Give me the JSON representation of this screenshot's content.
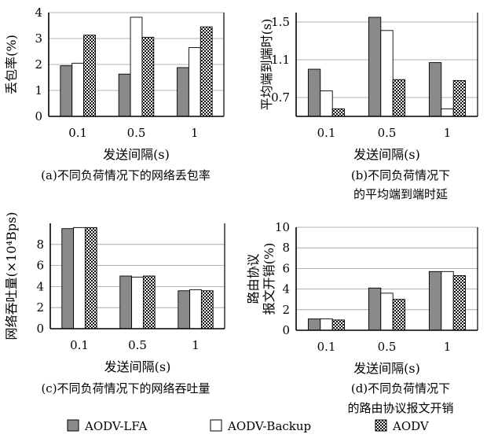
{
  "legend": [
    {
      "name": "AODV-LFA",
      "pattern": "solid"
    },
    {
      "name": "AODV-Backup",
      "pattern": "empty"
    },
    {
      "name": "AODV",
      "pattern": "crosshatch"
    }
  ],
  "colors": {
    "lfa_fill": "#8a8a8a",
    "backup_fill": "#ffffff",
    "aodv_fill": "#111111",
    "axis": "#000000",
    "grid": "#9a9a9a"
  },
  "chart_data": [
    {
      "id": "a",
      "type": "bar",
      "categories": [
        "0.1",
        "0.5",
        "1"
      ],
      "series": [
        {
          "name": "AODV-LFA",
          "values": [
            1.95,
            1.63,
            1.88
          ]
        },
        {
          "name": "AODV-Backup",
          "values": [
            2.05,
            3.82,
            2.65
          ]
        },
        {
          "name": "AODV",
          "values": [
            3.13,
            3.05,
            3.45
          ]
        }
      ],
      "ylim": [
        0,
        4
      ],
      "yticks": [
        "0",
        "1",
        "2",
        "3",
        "4"
      ],
      "ytick_values": [
        0,
        1,
        2,
        3,
        4
      ],
      "ylabel": "丢包率(%)",
      "xlabel": "发送间隔(s)",
      "caption": [
        "(a)不同负荷情况下的网络丢包率"
      ],
      "grid": true
    },
    {
      "id": "b",
      "type": "bar",
      "categories": [
        "0.1",
        "0.5",
        "1"
      ],
      "series": [
        {
          "name": "AODV-LFA",
          "values": [
            1.0,
            1.55,
            1.07
          ]
        },
        {
          "name": "AODV-Backup",
          "values": [
            0.77,
            1.41,
            0.58
          ]
        },
        {
          "name": "AODV",
          "values": [
            0.58,
            0.89,
            0.88
          ]
        }
      ],
      "ylim": [
        0.5,
        1.6
      ],
      "yticks": [
        "0.7",
        "1.1",
        "1.5"
      ],
      "ytick_values": [
        0.7,
        1.1,
        1.5
      ],
      "ylabel": "平均端到端时(s)",
      "xlabel": "发送间隔(s)",
      "caption": [
        "(b)不同负荷情况下",
        "的平均端到端时延"
      ],
      "grid": true
    },
    {
      "id": "c",
      "type": "bar",
      "categories": [
        "0.1",
        "0.5",
        "1"
      ],
      "series": [
        {
          "name": "AODV-LFA",
          "values": [
            9.5,
            5.0,
            3.6
          ]
        },
        {
          "name": "AODV-Backup",
          "values": [
            9.6,
            4.9,
            3.7
          ]
        },
        {
          "name": "AODV",
          "values": [
            9.6,
            5.0,
            3.6
          ]
        }
      ],
      "ylim": [
        0,
        10
      ],
      "yticks": [
        "0",
        "2",
        "4",
        "6",
        "8"
      ],
      "ytick_values": [
        0,
        2,
        4,
        6,
        8
      ],
      "ylabel": "网络吞吐量(×10⁴Bps)",
      "xlabel": "发送间隔(s)",
      "caption": [
        "(c)不同负荷情况下的网络吞吐量"
      ],
      "grid": true
    },
    {
      "id": "d",
      "type": "bar",
      "categories": [
        "0.1",
        "0.5",
        "1"
      ],
      "series": [
        {
          "name": "AODV-LFA",
          "values": [
            1.1,
            4.1,
            5.7
          ]
        },
        {
          "name": "AODV-Backup",
          "values": [
            1.1,
            3.6,
            5.7
          ]
        },
        {
          "name": "AODV",
          "values": [
            1.0,
            3.0,
            5.3
          ]
        }
      ],
      "ylim": [
        0,
        10
      ],
      "yticks": [
        "0",
        "2",
        "4",
        "6",
        "8",
        "10"
      ],
      "ytick_values": [
        0,
        2,
        4,
        6,
        8,
        10
      ],
      "ylabel": [
        "路由协议",
        "报文开销(%)"
      ],
      "xlabel": "发送间隔(s)",
      "caption": [
        "(d)不同负荷情况下",
        "的路由协议报文开销"
      ],
      "grid": true
    }
  ]
}
